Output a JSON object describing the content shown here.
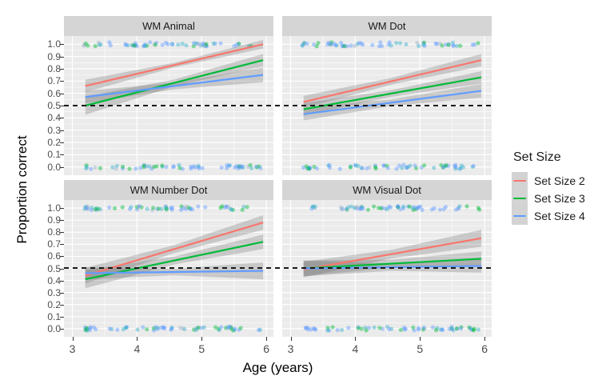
{
  "figure": {
    "xlabel": "Age (years)",
    "ylabel": "Proportion correct",
    "legend": {
      "title": "Set Size",
      "entries": [
        {
          "label": "Set Size 2",
          "color": "#F8766D"
        },
        {
          "label": "Set Size 3",
          "color": "#00BA38"
        },
        {
          "label": "Set Size 4",
          "color": "#619CFF"
        }
      ]
    }
  },
  "colors": {
    "panel_bg": "#EBEBEB",
    "strip_bg": "#D5D5D5",
    "grid": "#FFFFFF",
    "band": "rgba(115,115,115,0.30)",
    "reference": "#1A1A1A",
    "tick_text": "#4D4D4D",
    "text": "#1A1A1A",
    "point_palette": [
      "#619CFF",
      "#35B0C9",
      "#00BA38",
      "#9FB3C8"
    ]
  },
  "chart_data": {
    "type": "line",
    "title": "",
    "xlabel": "Age (years)",
    "ylabel": "Proportion correct",
    "xlim": [
      2.87,
      6.11
    ],
    "ylim": [
      -0.067,
      1.067
    ],
    "x_ticks": [
      3,
      4,
      5,
      6
    ],
    "y_ticks": [
      0,
      0.1,
      0.2,
      0.3,
      0.4,
      0.5,
      0.6,
      0.7,
      0.8,
      0.9,
      1.0
    ],
    "y_tick_labels": [
      "0.0",
      "0.1",
      "0.2",
      "0.3",
      "0.4",
      "0.5",
      "0.6",
      "0.7",
      "0.8",
      "0.9",
      "1.0"
    ],
    "x_minor_ticks": [
      3.5,
      4.5,
      5.5
    ],
    "reference_line_y": 0.5,
    "fit_x_range": [
      3.2,
      5.95
    ],
    "legend_position": "right",
    "grid": true,
    "facets": [
      {
        "title": "WM Animal",
        "series": [
          {
            "name": "Set Size 2",
            "y_start": 0.66,
            "y_end": 1.0,
            "ci_start": 0.05,
            "ci_end": 0.035
          },
          {
            "name": "Set Size 3",
            "y_start": 0.5,
            "y_end": 0.87,
            "ci_start": 0.075,
            "ci_end": 0.05
          },
          {
            "name": "Set Size 4",
            "y_start": 0.57,
            "y_end": 0.75,
            "ci_start": 0.05,
            "ci_end": 0.06
          }
        ]
      },
      {
        "title": "WM Dot",
        "series": [
          {
            "name": "Set Size 2",
            "y_start": 0.53,
            "y_end": 0.87,
            "ci_start": 0.05,
            "ci_end": 0.05
          },
          {
            "name": "Set Size 3",
            "y_start": 0.47,
            "y_end": 0.73,
            "ci_start": 0.05,
            "ci_end": 0.05
          },
          {
            "name": "Set Size 4",
            "y_start": 0.43,
            "y_end": 0.62,
            "ci_start": 0.05,
            "ci_end": 0.055
          }
        ]
      },
      {
        "title": "WM Number Dot",
        "series": [
          {
            "name": "Set Size 2",
            "y_start": 0.44,
            "y_end": 0.88,
            "ci_start": 0.065,
            "ci_end": 0.06
          },
          {
            "name": "Set Size 3",
            "y_start": 0.41,
            "y_end": 0.72,
            "ci_start": 0.075,
            "ci_end": 0.06
          },
          {
            "name": "Set Size 4",
            "y_start": 0.46,
            "y_end": 0.48,
            "ci_start": 0.05,
            "ci_end": 0.07
          }
        ]
      },
      {
        "title": "WM Visual Dot",
        "series": [
          {
            "name": "Set Size 2",
            "y_start": 0.49,
            "y_end": 0.75,
            "ci_start": 0.065,
            "ci_end": 0.07
          },
          {
            "name": "Set Size 3",
            "y_start": 0.5,
            "y_end": 0.58,
            "ci_start": 0.065,
            "ci_end": 0.06
          },
          {
            "name": "Set Size 4",
            "y_start": 0.5,
            "y_end": 0.52,
            "ci_start": 0.065,
            "ci_end": 0.055
          }
        ]
      }
    ],
    "rug_points": {
      "y_rows": [
        1,
        0
      ],
      "n_per_row": 60,
      "alpha": 0.45,
      "radius": 2.6,
      "age_clusters": [
        {
          "range": [
            3.17,
            3.44
          ],
          "weight": 0.14
        },
        {
          "range": [
            3.57,
            4.57
          ],
          "weight": 0.42
        },
        {
          "range": [
            4.63,
            5.08
          ],
          "weight": 0.18
        },
        {
          "range": [
            5.18,
            5.93
          ],
          "weight": 0.26
        }
      ]
    }
  }
}
